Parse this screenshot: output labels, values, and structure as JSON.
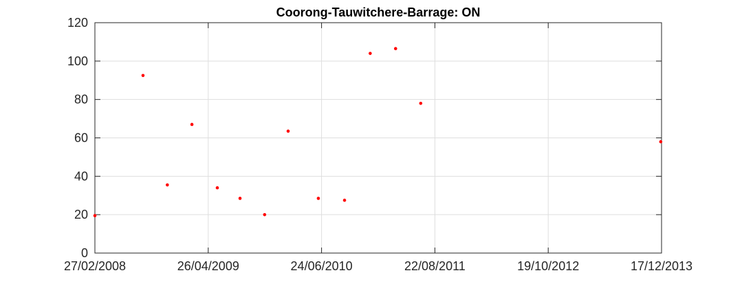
{
  "chart_data": {
    "type": "scatter",
    "title": "Coorong-Tauwitchere-Barrage: ON",
    "xlabel": "",
    "ylabel": "",
    "x_axis_type": "date",
    "xlim": [
      "2008-02-27",
      "2013-12-17"
    ],
    "ylim": [
      0,
      120
    ],
    "xticks": [
      "2008-02-27",
      "2009-04-26",
      "2010-06-24",
      "2011-08-22",
      "2012-10-19",
      "2013-12-17"
    ],
    "xtick_labels": [
      "27/02/2008",
      "26/04/2009",
      "24/06/2010",
      "22/08/2011",
      "19/10/2012",
      "17/12/2013"
    ],
    "yticks": [
      0,
      20,
      40,
      60,
      80,
      100,
      120
    ],
    "ytick_labels": [
      "0",
      "20",
      "40",
      "60",
      "80",
      "100",
      "120"
    ],
    "grid": true,
    "marker_color": "#ff0000",
    "series": [
      {
        "points": [
          {
            "x": "2008-02-27",
            "y": 19.5
          },
          {
            "x": "2008-08-25",
            "y": 92.5
          },
          {
            "x": "2008-11-24",
            "y": 35.5
          },
          {
            "x": "2009-02-24",
            "y": 67.0
          },
          {
            "x": "2009-05-30",
            "y": 34.0
          },
          {
            "x": "2009-08-23",
            "y": 28.5
          },
          {
            "x": "2009-11-23",
            "y": 20.0
          },
          {
            "x": "2010-02-19",
            "y": 63.5
          },
          {
            "x": "2010-06-12",
            "y": 28.5
          },
          {
            "x": "2010-09-18",
            "y": 27.5
          },
          {
            "x": "2010-12-23",
            "y": 104.0
          },
          {
            "x": "2011-03-28",
            "y": 106.5
          },
          {
            "x": "2011-06-30",
            "y": 78.0
          },
          {
            "x": "2013-12-14",
            "y": 58.0
          }
        ]
      }
    ]
  }
}
